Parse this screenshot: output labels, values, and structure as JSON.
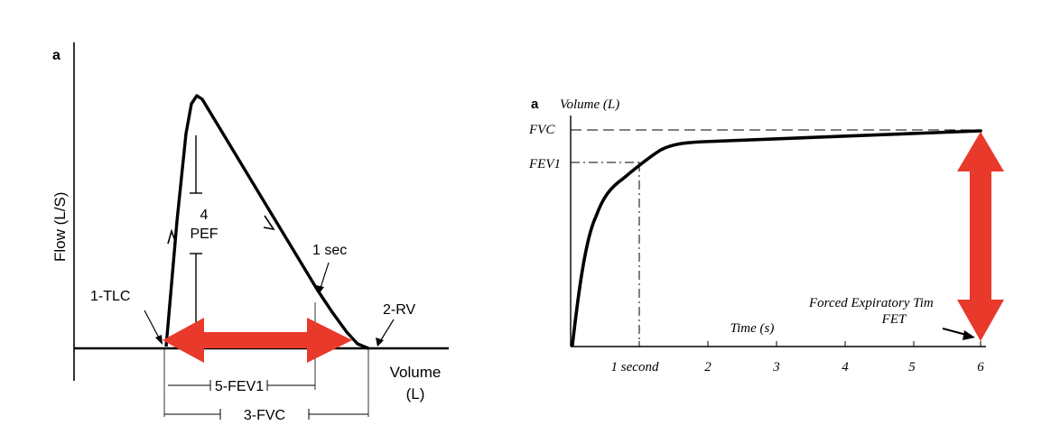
{
  "left_panel": {
    "panel_label": "a",
    "y_axis_label": "Flow (L/S)",
    "x_axis_label_line1": "Volume",
    "x_axis_label_line2": "(L)",
    "label_tlc": "1-TLC",
    "label_rv": "2-RV",
    "label_pef_number": "4",
    "label_pef_text": "PEF",
    "label_one_sec": "1 sec",
    "label_fev1": "5-FEV1",
    "label_fvc": "3-FVC",
    "arrow_color": "#e8392a"
  },
  "right_panel": {
    "panel_label": "a",
    "y_axis_label": "Volume (L)",
    "label_fvc": "FVC",
    "label_fev1": "FEV1",
    "x_axis_label": "Time (s)",
    "fet_label_line1": "Forced Expiratory Tim",
    "fet_label_line2": "FET",
    "x_ticks": [
      "1 second",
      "2",
      "3",
      "4",
      "5",
      "6"
    ],
    "arrow_color": "#e8392a"
  }
}
